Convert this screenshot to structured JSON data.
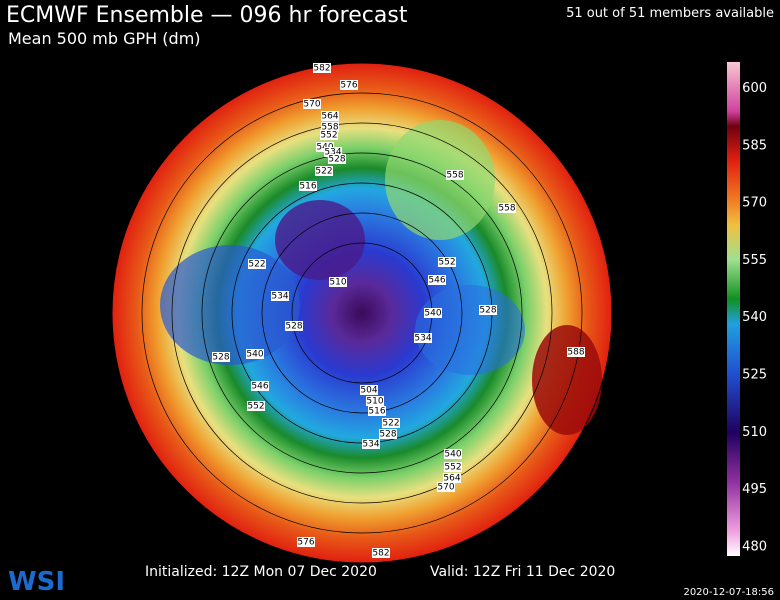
{
  "header": {
    "title": "ECMWF Ensemble — 096 hr forecast",
    "subtitle": "Mean 500 mb GPH (dm)",
    "members": "51 out of 51 members available"
  },
  "colorbar": {
    "labels": [
      "600",
      "585",
      "570",
      "555",
      "540",
      "525",
      "510",
      "495",
      "480"
    ]
  },
  "map": {
    "contour_labels": [
      "582",
      "576",
      "570",
      "564",
      "558",
      "552",
      "540",
      "534",
      "528",
      "522",
      "516",
      "558",
      "558",
      "522",
      "552",
      "546",
      "510",
      "534",
      "540",
      "528",
      "528",
      "534",
      "528",
      "540",
      "588",
      "546",
      "504",
      "510",
      "516",
      "552",
      "522",
      "528",
      "534",
      "540",
      "552",
      "564",
      "570",
      "576",
      "582"
    ]
  },
  "footer": {
    "logo": "WSI",
    "initialized": "Initialized: 12Z Mon 07 Dec 2020",
    "valid": "Valid: 12Z Fri 11 Dec 2020",
    "timestamp": "2020-12-07-18:56"
  }
}
